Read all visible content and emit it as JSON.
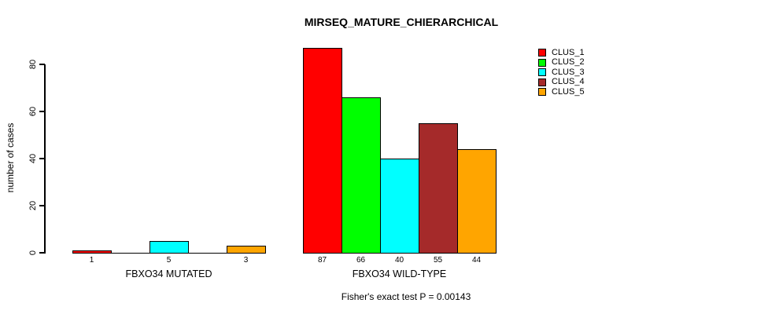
{
  "chart_data": {
    "type": "bar",
    "title": "MIRSEQ_MATURE_CHIERARCHICAL",
    "ylabel": "number of cases",
    "xlabel": "",
    "caption": "Fisher's exact test P = 0.00143",
    "ylim": [
      0,
      80
    ],
    "yticks": [
      0,
      20,
      40,
      60,
      80
    ],
    "categories": [
      "FBXO34 MUTATED",
      "FBXO34 WILD-TYPE"
    ],
    "series": [
      {
        "name": "CLUS_1",
        "color": "#FF0000",
        "values": [
          1,
          87
        ]
      },
      {
        "name": "CLUS_2",
        "color": "#00FF00",
        "values": [
          0,
          66
        ]
      },
      {
        "name": "CLUS_3",
        "color": "#00FFFF",
        "values": [
          5,
          40
        ]
      },
      {
        "name": "CLUS_4",
        "color": "#A52A2A",
        "values": [
          0,
          55
        ]
      },
      {
        "name": "CLUS_5",
        "color": "#FFA500",
        "values": [
          3,
          44
        ]
      }
    ],
    "value_labels": [
      [
        "1",
        "",
        "5",
        "",
        "3"
      ],
      [
        "87",
        "66",
        "40",
        "55",
        "44"
      ]
    ],
    "legend": {
      "position": "right",
      "entries": [
        "CLUS_1",
        "CLUS_2",
        "CLUS_3",
        "CLUS_4",
        "CLUS_5"
      ]
    },
    "grid": false,
    "bar_border_color": "#000000",
    "background": "#FFFFFF",
    "text_color": "#000000"
  }
}
